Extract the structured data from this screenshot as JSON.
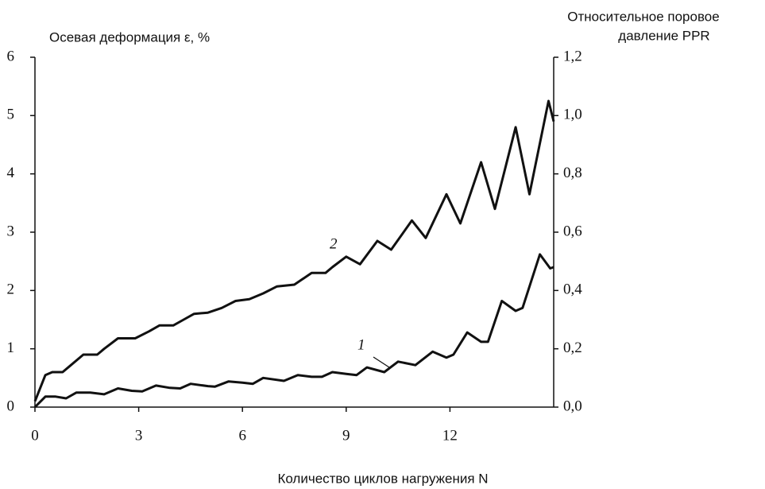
{
  "chart_data": {
    "type": "line",
    "y_label": "Осевая деформация ε, %",
    "y2_label": [
      "Относительное поровое",
      "давление PPR"
    ],
    "x_label": "Количество циклов нагружения N",
    "xlim": [
      0,
      15
    ],
    "xticks": [
      0,
      3,
      6,
      9,
      12
    ],
    "ylim": [
      0,
      6
    ],
    "yticks": [
      0,
      1,
      2,
      3,
      4,
      5,
      6
    ],
    "y2lim": [
      0,
      1.2
    ],
    "y2ticks": [
      {
        "value": 0,
        "label": "0,0"
      },
      {
        "value": 0.2,
        "label": "0,2"
      },
      {
        "value": 0.4,
        "label": "0,4"
      },
      {
        "value": 0.6,
        "label": "0,6"
      },
      {
        "value": 0.8,
        "label": "0,8"
      },
      {
        "value": 1.0,
        "label": "1,0"
      },
      {
        "value": 1.2,
        "label": "1,2"
      }
    ],
    "series": [
      {
        "name": "1",
        "color": "#111111",
        "axis": "y",
        "x": [
          0,
          0.3,
          0.6,
          0.9,
          1.2,
          1.6,
          2.0,
          2.4,
          2.8,
          3.1,
          3.5,
          3.9,
          4.2,
          4.5,
          5.0,
          5.2,
          5.6,
          6.0,
          6.3,
          6.6,
          7.2,
          7.6,
          8.0,
          8.3,
          8.6,
          9.0,
          9.3,
          9.6,
          10.1,
          10.5,
          11.0,
          11.5,
          11.9,
          12.1,
          12.5,
          12.9,
          13.1,
          13.5,
          13.9,
          14.1,
          14.6,
          14.9,
          15
        ],
        "values": [
          0,
          0.18,
          0.18,
          0.15,
          0.25,
          0.25,
          0.22,
          0.32,
          0.28,
          0.27,
          0.37,
          0.33,
          0.32,
          0.4,
          0.36,
          0.35,
          0.44,
          0.42,
          0.4,
          0.5,
          0.45,
          0.55,
          0.52,
          0.52,
          0.6,
          0.57,
          0.55,
          0.68,
          0.6,
          0.78,
          0.72,
          0.95,
          0.85,
          0.9,
          1.28,
          1.12,
          1.12,
          1.82,
          1.65,
          1.7,
          2.62,
          2.38,
          2.4
        ]
      },
      {
        "name": "2",
        "color": "#111111",
        "axis": "y2",
        "x": [
          0,
          0.3,
          0.5,
          0.8,
          1.0,
          1.4,
          1.8,
          2.0,
          2.4,
          2.9,
          3.3,
          3.6,
          4.0,
          4.3,
          4.6,
          5.0,
          5.4,
          5.8,
          6.2,
          6.6,
          7.0,
          7.5,
          8.0,
          8.4,
          8.6,
          9.0,
          9.4,
          9.9,
          10.3,
          10.9,
          11.3,
          11.9,
          12.3,
          12.9,
          13.3,
          13.9,
          14.3,
          14.85,
          15
        ],
        "values": [
          0.02,
          0.11,
          0.12,
          0.12,
          0.14,
          0.18,
          0.18,
          0.2,
          0.236,
          0.236,
          0.26,
          0.28,
          0.28,
          0.3,
          0.32,
          0.324,
          0.34,
          0.364,
          0.37,
          0.39,
          0.414,
          0.42,
          0.46,
          0.46,
          0.48,
          0.516,
          0.49,
          0.57,
          0.54,
          0.64,
          0.58,
          0.73,
          0.63,
          0.84,
          0.68,
          0.96,
          0.73,
          1.05,
          0.98
        ]
      }
    ]
  }
}
